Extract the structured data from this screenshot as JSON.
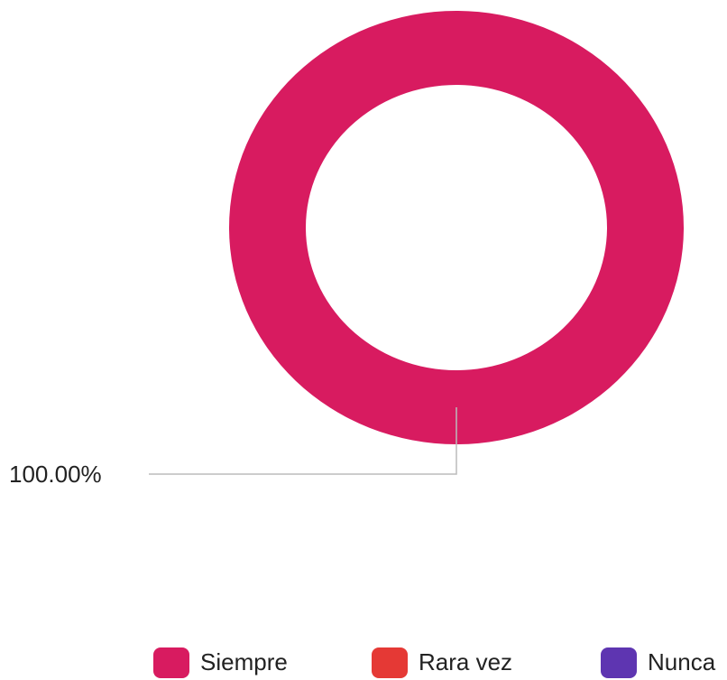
{
  "chart_data": {
    "type": "donut",
    "categories": [
      "Siempre",
      "Rara vez",
      "Nunca"
    ],
    "values": [
      100,
      0,
      0
    ],
    "value_labels": [
      "100.00%",
      null,
      null
    ],
    "colors": [
      "#d81b60",
      "#e53935",
      "#5e35b1"
    ]
  }
}
